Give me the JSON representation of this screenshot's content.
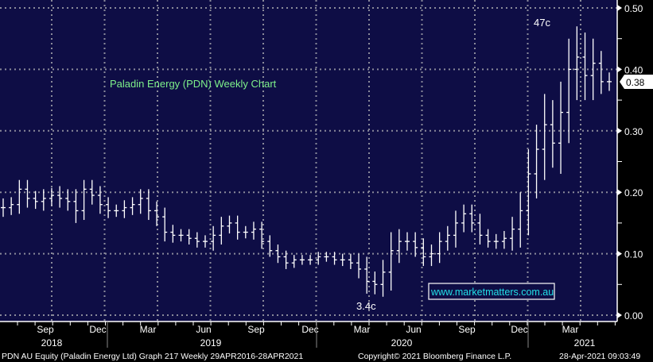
{
  "chart_data": {
    "type": "ohlc-bar",
    "title": "Paladin Energy (PDN) Weekly Chart",
    "colors": {
      "background": "#0e0d45",
      "bars": "#ffffff",
      "title": "#7ef08a",
      "grid": "#8a8a9a",
      "link": "#22e0e8"
    },
    "ylim": [
      0,
      0.5
    ],
    "y_ticks": [
      "0.00",
      "0.10",
      "0.20",
      "0.30",
      "0.40",
      "0.50"
    ],
    "last_price_label": "0.38",
    "x_month_labels": [
      "Sep",
      "Dec",
      "Mar",
      "Jun",
      "Sep",
      "Dec",
      "Mar",
      "Jun",
      "Sep",
      "Dec",
      "Mar"
    ],
    "x_year_labels": [
      "2018",
      "2019",
      "2020",
      "2021"
    ],
    "annotations": {
      "high": "47c",
      "low": "3.4c",
      "website": "www.marketmatters.com.au"
    },
    "series_note": "approx. close every 2 weeks, Jun 2018 - Apr 2021",
    "close": [
      0.175,
      0.18,
      0.205,
      0.19,
      0.185,
      0.19,
      0.195,
      0.19,
      0.185,
      0.17,
      0.205,
      0.195,
      0.18,
      0.17,
      0.17,
      0.175,
      0.18,
      0.19,
      0.17,
      0.16,
      0.135,
      0.13,
      0.13,
      0.125,
      0.12,
      0.12,
      0.13,
      0.145,
      0.15,
      0.135,
      0.135,
      0.14,
      0.12,
      0.105,
      0.095,
      0.085,
      0.09,
      0.09,
      0.09,
      0.095,
      0.095,
      0.09,
      0.09,
      0.085,
      0.075,
      0.055,
      0.05,
      0.07,
      0.105,
      0.12,
      0.12,
      0.11,
      0.095,
      0.1,
      0.12,
      0.13,
      0.15,
      0.165,
      0.15,
      0.13,
      0.12,
      0.12,
      0.125,
      0.14,
      0.17,
      0.23,
      0.27,
      0.31,
      0.28,
      0.33,
      0.4,
      0.42,
      0.39,
      0.41,
      0.38,
      0.38
    ],
    "spread": [
      0.015,
      0.012,
      0.015,
      0.015,
      0.012,
      0.015,
      0.012,
      0.015,
      0.015,
      0.02,
      0.015,
      0.015,
      0.015,
      0.012,
      0.01,
      0.012,
      0.012,
      0.015,
      0.015,
      0.015,
      0.015,
      0.012,
      0.01,
      0.01,
      0.01,
      0.01,
      0.015,
      0.015,
      0.012,
      0.012,
      0.01,
      0.012,
      0.012,
      0.01,
      0.01,
      0.01,
      0.008,
      0.008,
      0.008,
      0.008,
      0.008,
      0.008,
      0.01,
      0.01,
      0.015,
      0.02,
      0.016,
      0.02,
      0.03,
      0.02,
      0.015,
      0.015,
      0.015,
      0.015,
      0.015,
      0.015,
      0.02,
      0.015,
      0.015,
      0.015,
      0.01,
      0.012,
      0.012,
      0.02,
      0.03,
      0.04,
      0.04,
      0.05,
      0.04,
      0.05,
      0.05,
      0.05,
      0.04,
      0.04,
      0.02,
      0.015
    ]
  },
  "footer": {
    "left": "PDN AU Equity (Paladin Energy Ltd) Graph 217  Weekly 29APR2016-28APR2021",
    "center": "Copyright© 2021 Bloomberg Finance L.P.",
    "right": "28-Apr-2021 09:03:49"
  }
}
